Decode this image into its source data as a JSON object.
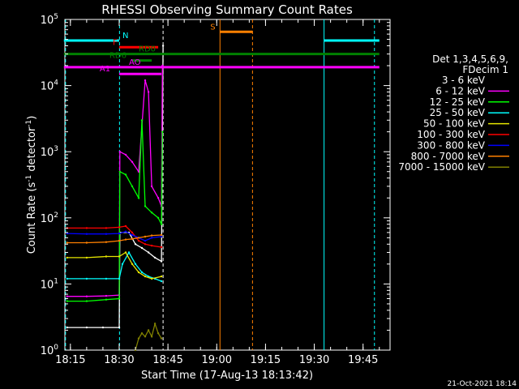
{
  "chart_data": {
    "type": "line",
    "title": "RHESSI Observing Summary Count Rates",
    "xlabel": "Start Time (17-Aug-13 18:13:42)",
    "ylabel_main": "Count Rate (s",
    "ylabel_sup1": "-1",
    "ylabel_mid": " detector",
    "ylabel_sup2": "-1",
    "ylabel_end": ")",
    "yscale": "log",
    "xlim": [
      "18:13",
      "19:53"
    ],
    "ylim": [
      1,
      100000
    ],
    "x_ticks": [
      {
        "t": "18:15",
        "label": "18:15"
      },
      {
        "t": "18:30",
        "label": "18:30"
      },
      {
        "t": "18:45",
        "label": "18:45"
      },
      {
        "t": "19:00",
        "label": "19:00"
      },
      {
        "t": "19:15",
        "label": "19:15"
      },
      {
        "t": "19:30",
        "label": "19:30"
      },
      {
        "t": "19:45",
        "label": "19:45"
      }
    ],
    "y_ticks": [
      {
        "value": 1,
        "base": "10",
        "exp": "0"
      },
      {
        "value": 10,
        "base": "10",
        "exp": "1"
      },
      {
        "value": 100,
        "base": "10",
        "exp": "2"
      },
      {
        "value": 1000,
        "base": "10",
        "exp": "3"
      },
      {
        "value": 10000,
        "base": "10",
        "exp": "4"
      },
      {
        "value": 100000,
        "base": "10",
        "exp": "5"
      }
    ],
    "legend": {
      "placement": "right",
      "header": [
        "Det 1,3,4,5,6,9,",
        "FDecim 1"
      ],
      "entries": [
        {
          "label": "3 - 6 keV",
          "color": "#000000"
        },
        {
          "label": "6 - 12 keV",
          "color": "#ff00ff"
        },
        {
          "label": "12 - 25 keV",
          "color": "#00ff00"
        },
        {
          "label": "25 - 50 keV",
          "color": "#00ffff"
        },
        {
          "label": "50 - 100 keV",
          "color": "#e6e600"
        },
        {
          "label": "100 - 300 keV",
          "color": "#ff0000"
        },
        {
          "label": "300 - 800 keV",
          "color": "#0000ff"
        },
        {
          "label": "800 - 7000 keV",
          "color": "#ff8000"
        },
        {
          "label": "7000 - 15000 keV",
          "color": "#808000"
        }
      ]
    },
    "series": [
      {
        "name": "3 - 6 keV",
        "color": "#000000",
        "drawn_as_white": true,
        "points": [
          [
            "18:14",
            2.2
          ],
          [
            "18:20",
            2.2
          ],
          [
            "18:25",
            2.2
          ],
          [
            "18:30",
            2.2
          ],
          [
            "18:30.2",
            60
          ],
          [
            "18:33",
            60
          ],
          [
            "18:35",
            40
          ],
          [
            "18:37",
            35
          ],
          [
            "18:39",
            30
          ],
          [
            "18:41",
            25
          ],
          [
            "18:43",
            22
          ],
          [
            "18:43.5",
            40000
          ]
        ]
      },
      {
        "name": "6 - 12 keV",
        "color": "#ff00ff",
        "points": [
          [
            "18:14",
            6.5
          ],
          [
            "18:20",
            6.5
          ],
          [
            "18:26",
            6.6
          ],
          [
            "18:30",
            6.8
          ],
          [
            "18:30.2",
            1000
          ],
          [
            "18:32",
            900
          ],
          [
            "18:34",
            700
          ],
          [
            "18:36",
            500
          ],
          [
            "18:38",
            12000
          ],
          [
            "18:39",
            8000
          ],
          [
            "18:40",
            300
          ],
          [
            "18:42",
            200
          ],
          [
            "18:43",
            150
          ],
          [
            "18:43.3",
            20000
          ]
        ]
      },
      {
        "name": "12 - 25 keV",
        "color": "#00ff00",
        "points": [
          [
            "18:14",
            5.5
          ],
          [
            "18:20",
            5.5
          ],
          [
            "18:26",
            5.8
          ],
          [
            "18:30",
            6
          ],
          [
            "18:30.2",
            500
          ],
          [
            "18:32",
            450
          ],
          [
            "18:34",
            300
          ],
          [
            "18:36",
            200
          ],
          [
            "18:37",
            3000
          ],
          [
            "18:38",
            150
          ],
          [
            "18:40",
            120
          ],
          [
            "18:42",
            100
          ],
          [
            "18:43",
            80
          ],
          [
            "18:43.3",
            2000
          ]
        ]
      },
      {
        "name": "25 - 50 keV",
        "color": "#00ffff",
        "points": [
          [
            "18:14",
            12
          ],
          [
            "18:20",
            12
          ],
          [
            "18:26",
            12
          ],
          [
            "18:30",
            12
          ],
          [
            "18:31",
            20
          ],
          [
            "18:33",
            30
          ],
          [
            "18:35",
            20
          ],
          [
            "18:37",
            15
          ],
          [
            "18:39",
            13
          ],
          [
            "18:41",
            12
          ],
          [
            "18:43",
            11
          ]
        ]
      },
      {
        "name": "50 - 100 keV",
        "color": "#e6e600",
        "points": [
          [
            "18:14",
            25
          ],
          [
            "18:20",
            25
          ],
          [
            "18:26",
            26
          ],
          [
            "18:30",
            26
          ],
          [
            "18:32",
            30
          ],
          [
            "18:34",
            20
          ],
          [
            "18:36",
            15
          ],
          [
            "18:38",
            13
          ],
          [
            "18:40",
            12
          ],
          [
            "18:43",
            13
          ]
        ]
      },
      {
        "name": "100 - 300 keV",
        "color": "#ff0000",
        "points": [
          [
            "18:14",
            70
          ],
          [
            "18:20",
            70
          ],
          [
            "18:26",
            70
          ],
          [
            "18:30",
            72
          ],
          [
            "18:32",
            75
          ],
          [
            "18:34",
            60
          ],
          [
            "18:36",
            45
          ],
          [
            "18:38",
            40
          ],
          [
            "18:40",
            38
          ],
          [
            "18:43",
            36
          ]
        ]
      },
      {
        "name": "300 - 800 keV",
        "color": "#0000ff",
        "points": [
          [
            "18:14",
            58
          ],
          [
            "18:20",
            57
          ],
          [
            "18:26",
            57
          ],
          [
            "18:30",
            58
          ],
          [
            "18:32",
            62
          ],
          [
            "18:34",
            55
          ],
          [
            "18:36",
            50
          ],
          [
            "18:38",
            45
          ],
          [
            "18:40",
            50
          ],
          [
            "18:43",
            52
          ]
        ]
      },
      {
        "name": "800 - 7000 keV",
        "color": "#ff8000",
        "points": [
          [
            "18:14",
            42
          ],
          [
            "18:20",
            42
          ],
          [
            "18:26",
            43
          ],
          [
            "18:30",
            45
          ],
          [
            "18:32",
            47
          ],
          [
            "18:34",
            48
          ],
          [
            "18:36",
            50
          ],
          [
            "18:38",
            52
          ],
          [
            "18:40",
            54
          ],
          [
            "18:43",
            55
          ]
        ]
      },
      {
        "name": "7000 - 15000 keV",
        "color": "#808000",
        "points": [
          [
            "18:35",
            1.0
          ],
          [
            "18:36",
            1.5
          ],
          [
            "18:37",
            1.8
          ],
          [
            "18:38",
            1.6
          ],
          [
            "18:39",
            2.0
          ],
          [
            "18:40",
            1.6
          ],
          [
            "18:41",
            2.5
          ],
          [
            "18:42",
            1.8
          ],
          [
            "18:43",
            1.5
          ]
        ]
      }
    ],
    "flag_bars": [
      {
        "label": "N",
        "color": "#00ffff",
        "value": 48000,
        "segments": [
          [
            "18:13",
            "18:30"
          ],
          [
            "19:33",
            "19:50"
          ]
        ],
        "label_at": "18:31"
      },
      {
        "label": "S",
        "color": "#ff8000",
        "value": 65000,
        "segments": [
          [
            "19:01",
            "19:11"
          ]
        ],
        "label_at": "18:58"
      },
      {
        "label": "F",
        "color": "#ff0000",
        "value": 38000,
        "segments": [
          [
            "18:30",
            "18:42"
          ]
        ],
        "label_at": "18:28"
      },
      {
        "label": "RD0",
        "color": "#008000",
        "value": 30000,
        "segments": [
          [
            "18:13",
            "19:50"
          ]
        ],
        "label_at": "18:36"
      },
      {
        "label": "RD6",
        "color": "#008000",
        "value": 24000,
        "segments": [
          [
            "18:34",
            "18:40"
          ]
        ],
        "label_at": "18:27"
      },
      {
        "label": "AO",
        "color": "#ff00ff",
        "value": 19000,
        "segments": [
          [
            "18:13",
            "19:50"
          ]
        ],
        "label_at": "18:33"
      },
      {
        "label": "A1",
        "color": "#ff00ff",
        "value": 15000,
        "segments": [
          [
            "18:30",
            "18:43"
          ]
        ],
        "label_at": "18:24"
      }
    ],
    "vertical_markers": [
      {
        "t": "18:13.5",
        "color": "#00ffff",
        "dashed": true
      },
      {
        "t": "18:30.1",
        "color": "#00ffff",
        "dashed": true
      },
      {
        "t": "18:43.5",
        "color": "#ffffff",
        "dashed": true
      },
      {
        "t": "19:01",
        "color": "#ff8000",
        "dashed": false
      },
      {
        "t": "19:11",
        "color": "#ff8000",
        "dashed": true
      },
      {
        "t": "19:33",
        "color": "#00ffff",
        "dashed": false
      },
      {
        "t": "19:48.5",
        "color": "#00ffff",
        "dashed": true
      }
    ]
  },
  "footer": {
    "timestamp": "21-Oct-2021 18:14"
  }
}
